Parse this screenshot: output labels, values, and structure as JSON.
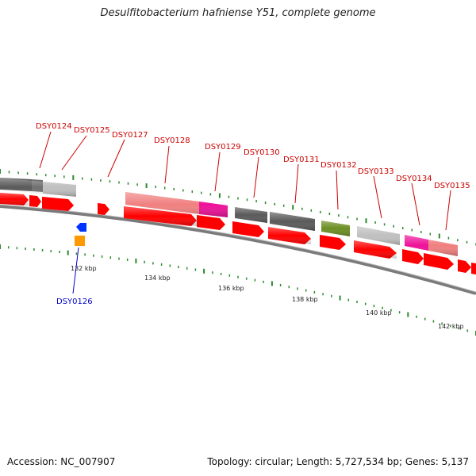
{
  "header": {
    "title": "Desulfitobacterium hafniense Y51, complete genome"
  },
  "footer": {
    "accession": "Accession: NC_007907",
    "summary": "Topology: circular; Length: 5,727,534 bp; Genes: 5,137"
  },
  "colors": {
    "forward_cds": "#ff0000",
    "backbone": "#808080",
    "tick": "#2a8a2a",
    "label_red": "#cc0000",
    "label_blue": "#0000cc",
    "pink": "#f08080",
    "magenta": "#ee1199",
    "dark_grey": "#5a5a5a",
    "light_grey": "#c0c0c0",
    "olive": "#6b8e23",
    "blue": "#0033ff",
    "orange": "#ff9900"
  },
  "gene_labels": [
    {
      "name": "DSY0124",
      "color": "label_red"
    },
    {
      "name": "DSY0125",
      "color": "label_red"
    },
    {
      "name": "DSY0127",
      "color": "label_red"
    },
    {
      "name": "DSY0128",
      "color": "label_red"
    },
    {
      "name": "DSY0129",
      "color": "label_red"
    },
    {
      "name": "DSY0130",
      "color": "label_red"
    },
    {
      "name": "DSY0131",
      "color": "label_red"
    },
    {
      "name": "DSY0132",
      "color": "label_red"
    },
    {
      "name": "DSY0133",
      "color": "label_red"
    },
    {
      "name": "DSY0134",
      "color": "label_red"
    },
    {
      "name": "DSY0135",
      "color": "label_red"
    },
    {
      "name": "DSY0126",
      "color": "label_blue"
    }
  ],
  "scale_labels": [
    "132 kbp",
    "134 kbp",
    "136 kbp",
    "138 kbp",
    "140 kbp",
    "142 kbp"
  ]
}
